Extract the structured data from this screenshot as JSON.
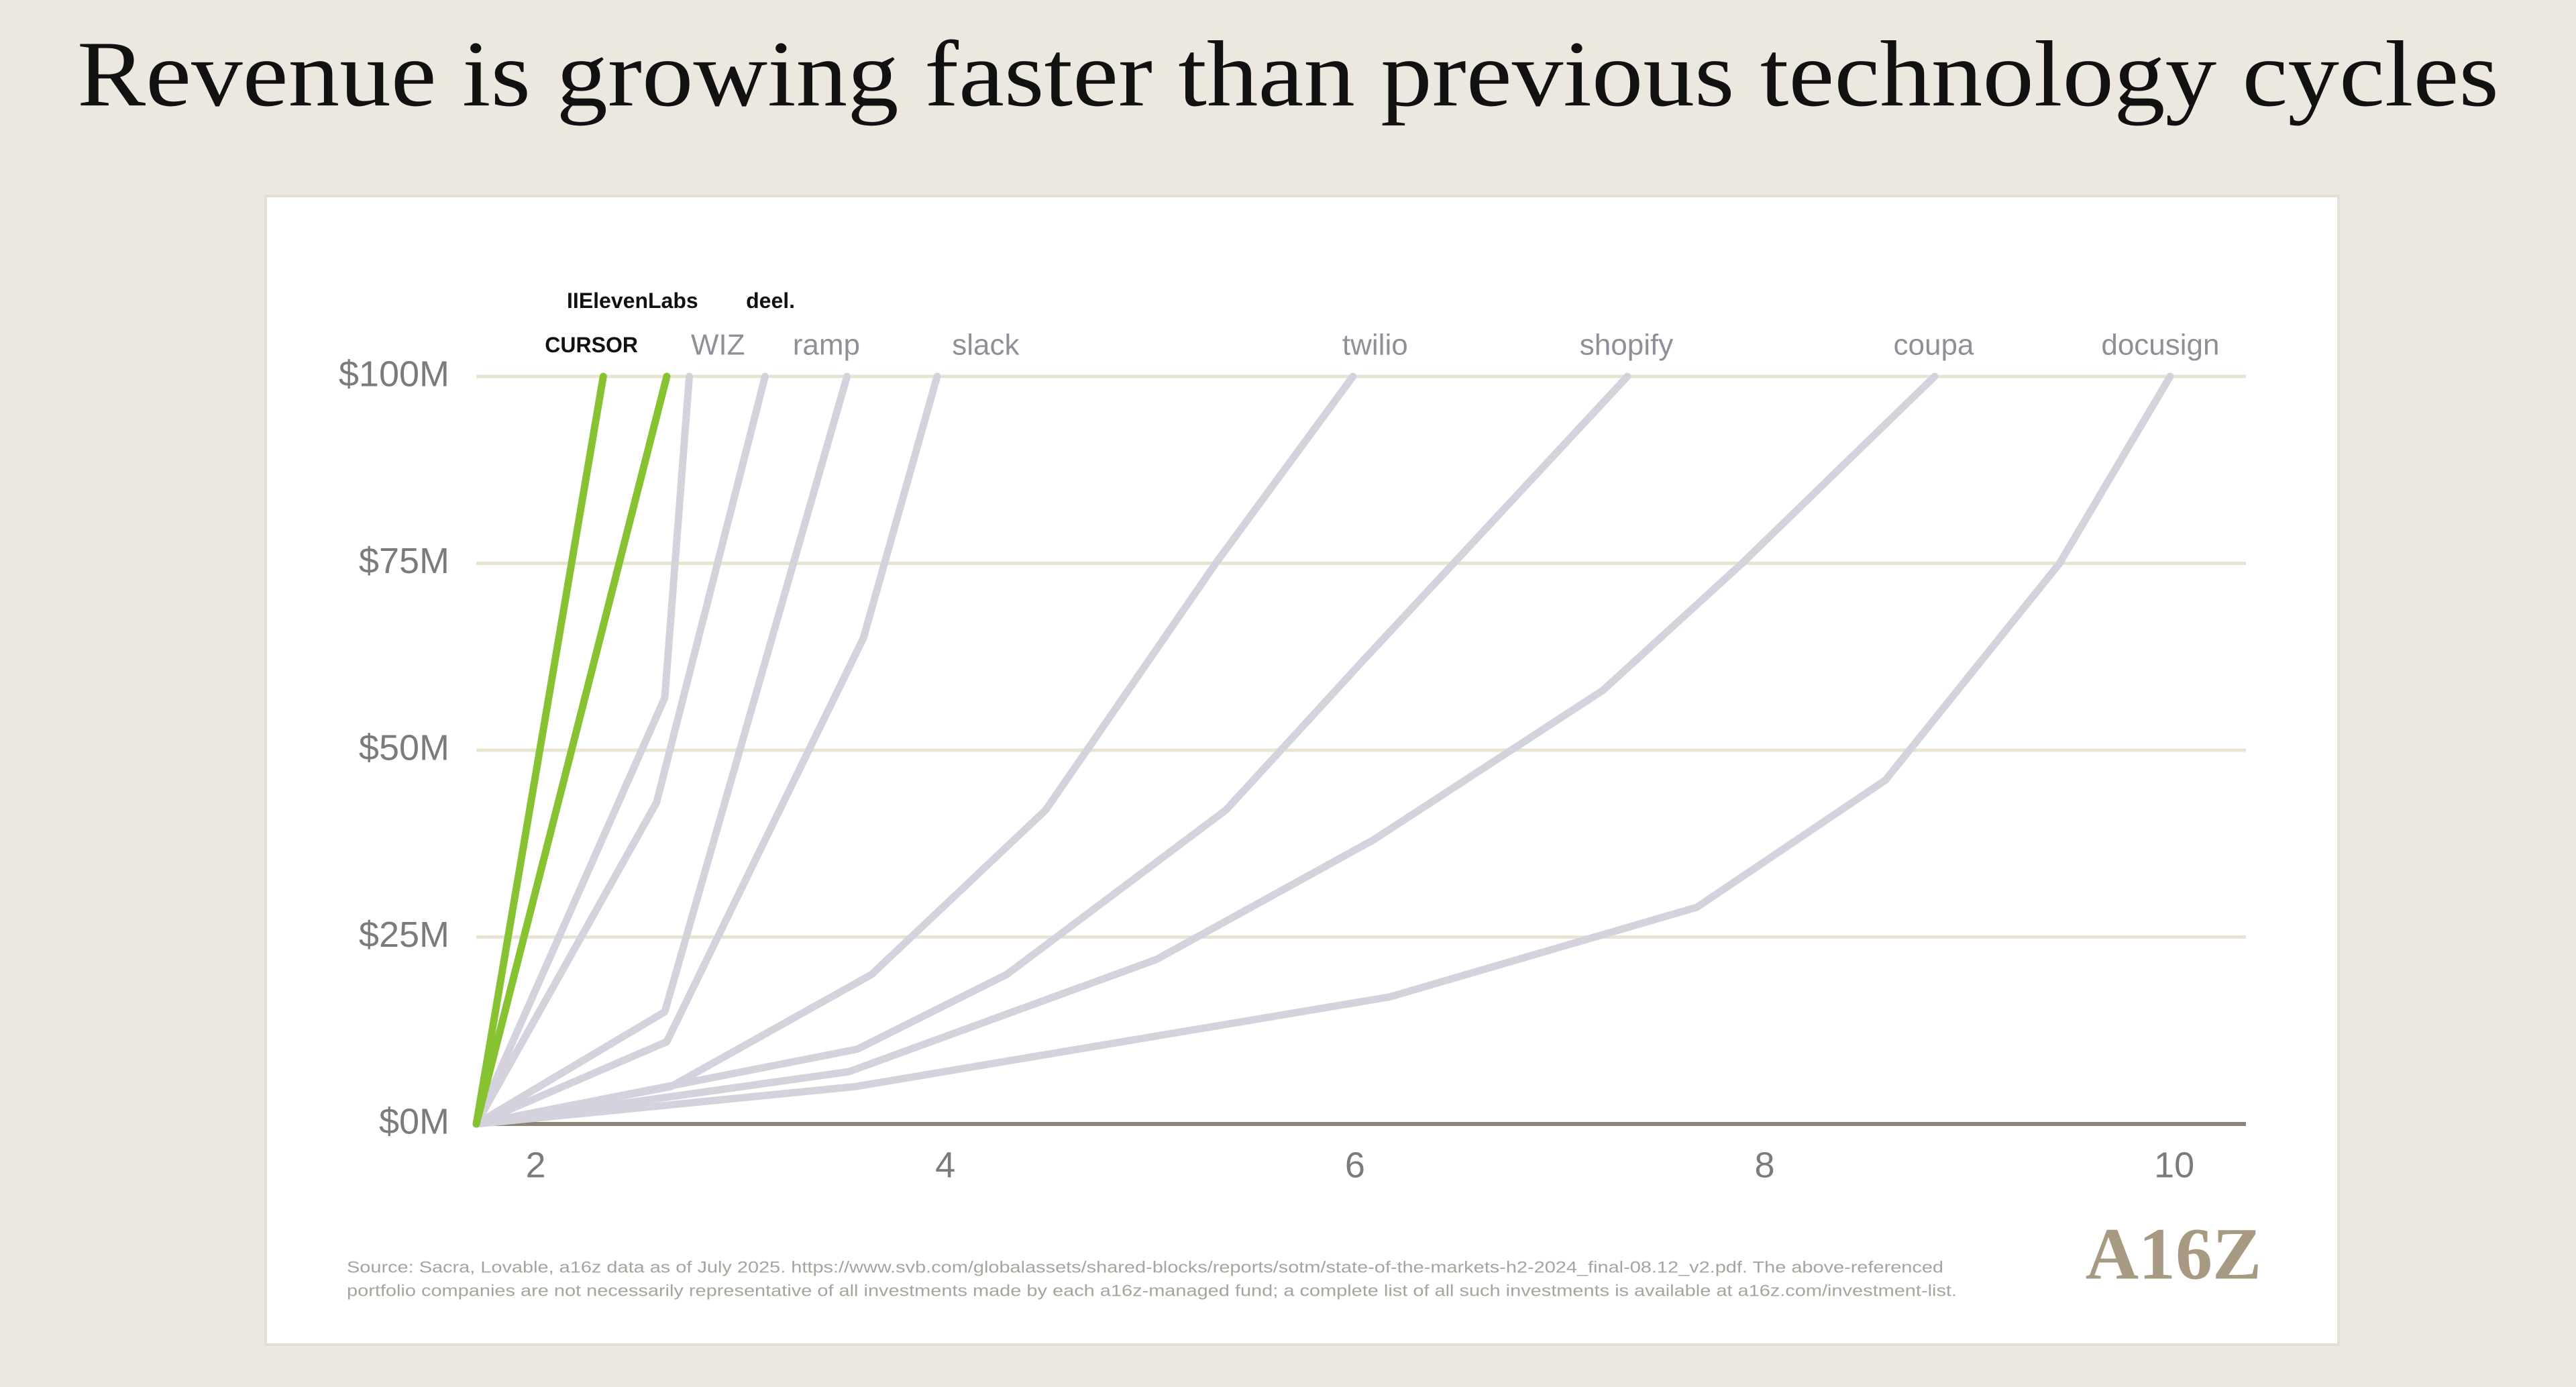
{
  "chart_data": {
    "type": "line",
    "title": "Revenue is growing faster than previous technology cycles",
    "notes": [
      "Source: Sacra, Lovable, a16z data as of July 2025. https://www.svb.com/globalassets/shared-blocks/reports/sotm/state-of-the-markets-h2-2024_final-08.12_v2.pdf. The above-referenced",
      "portfolio companies are not necessarily representative of all investments made by each a16z-managed fund; a complete list of all such investments is available at a16z.com/investment-list."
    ],
    "logo": "A16Z",
    "xlim": [
      1.71,
      10.35
    ],
    "xticks": [
      2,
      4,
      6,
      8,
      10
    ],
    "ylim": [
      0,
      100
    ],
    "yticks": [
      {
        "value": 0,
        "label": "$0M"
      },
      {
        "value": 25,
        "label": "$25M"
      },
      {
        "value": 50,
        "label": "$50M"
      },
      {
        "value": 75,
        "label": "$75M"
      },
      {
        "value": 100,
        "label": "$100M"
      }
    ],
    "grid": true,
    "series": [
      {
        "name": "CURSOR",
        "color": "#86c232",
        "x": [
          1.71,
          2.33
        ],
        "values": [
          0,
          100
        ]
      },
      {
        "name": "IIElevenLabs",
        "color": "#86c232",
        "x": [
          1.71,
          2.64
        ],
        "values": [
          0,
          100
        ]
      },
      {
        "name": "WIZ",
        "color": "#d4d3dd",
        "x": [
          1.71,
          2.63,
          2.75
        ],
        "values": [
          0,
          57,
          100
        ]
      },
      {
        "name": "deel.",
        "color": "#d4d3dd",
        "x": [
          1.71,
          2.59,
          3.12
        ],
        "values": [
          0,
          43,
          100
        ]
      },
      {
        "name": "ramp",
        "color": "#d4d3dd",
        "x": [
          1.71,
          2.63,
          3.52
        ],
        "values": [
          0,
          15,
          100
        ]
      },
      {
        "name": "slack",
        "color": "#d4d3dd",
        "x": [
          1.71,
          2.64,
          3.6,
          3.96
        ],
        "values": [
          0,
          11,
          65,
          100
        ]
      },
      {
        "name": "twilio",
        "color": "#d4d3dd",
        "x": [
          1.71,
          2.66,
          3.64,
          4.49,
          5.32,
          5.99
        ],
        "values": [
          0,
          5,
          20,
          42,
          75,
          100
        ]
      },
      {
        "name": "shopify",
        "color": "#d4d3dd",
        "x": [
          1.71,
          3.57,
          4.3,
          5.37,
          6.04,
          7.33
        ],
        "values": [
          0,
          10,
          20,
          42,
          62,
          100
        ]
      },
      {
        "name": "coupa",
        "color": "#d4d3dd",
        "x": [
          1.71,
          3.53,
          5.03,
          6.09,
          7.21,
          7.89,
          8.83
        ],
        "values": [
          0,
          7,
          22,
          38,
          58,
          75,
          100
        ]
      },
      {
        "name": "docusign",
        "color": "#d4d3dd",
        "x": [
          1.71,
          3.56,
          6.17,
          7.67,
          8.59,
          9.44,
          9.98
        ],
        "values": [
          0,
          5,
          17,
          29,
          46,
          75,
          100
        ]
      }
    ]
  }
}
